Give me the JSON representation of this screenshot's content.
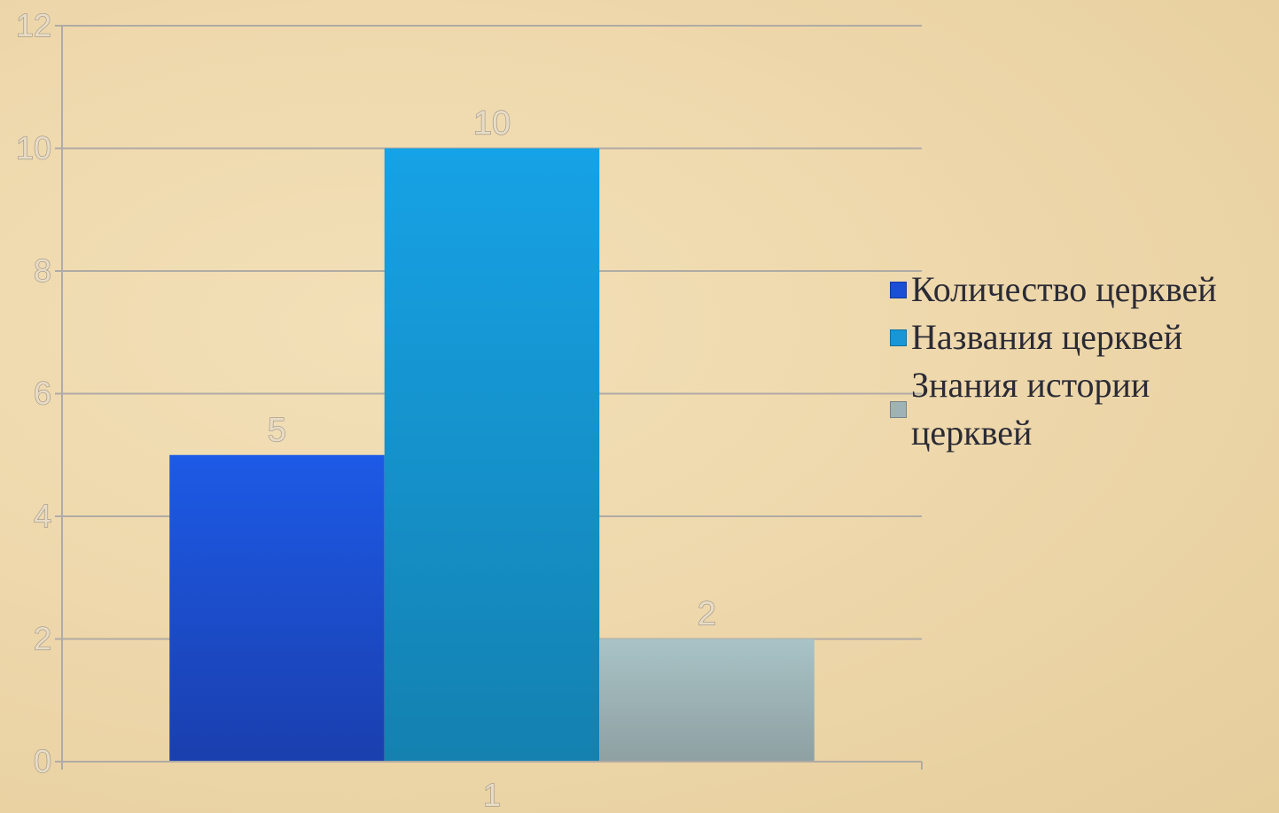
{
  "chart_data": {
    "type": "bar",
    "categories": [
      "1"
    ],
    "series": [
      {
        "name": "Количество церквей",
        "values": [
          5
        ],
        "color": "#1a4fd6"
      },
      {
        "name": "Названия церквей",
        "values": [
          10
        ],
        "color": "#1896d6"
      },
      {
        "name": "Знания истории церквей",
        "values": [
          2
        ],
        "color": "#9fb3b6"
      }
    ],
    "ylim": [
      0,
      12
    ],
    "yticks": [
      "0",
      "2",
      "4",
      "6",
      "8",
      "10",
      "12"
    ],
    "grid": true,
    "legend_position": "right",
    "data_labels": true
  }
}
